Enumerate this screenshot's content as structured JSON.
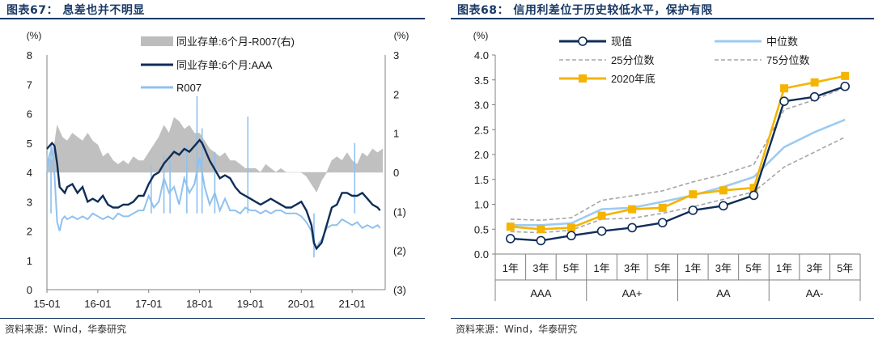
{
  "left": {
    "title": "图表67：  息差也并不明显",
    "source": "资料来源：Wind，华泰研究",
    "chart_data": {
      "type": "line",
      "left_unit": "(%)",
      "right_unit": "(%)",
      "x_ticks": [
        "15-01",
        "16-01",
        "17-01",
        "18-01",
        "19-01",
        "20-01",
        "21-01"
      ],
      "y_left_ticks": [
        "0",
        "1",
        "2",
        "3",
        "4",
        "5",
        "6",
        "7",
        "8"
      ],
      "y_right_ticks": [
        "(3)",
        "(2)",
        "(1)",
        "0",
        "1",
        "2",
        "3"
      ],
      "ylim_left": [
        0,
        8
      ],
      "ylim_right": [
        -3,
        3
      ],
      "colors": {
        "spread": "#bdbdbd",
        "aaa": "#0f2d57",
        "r007": "#8fc1ef"
      },
      "series": [
        {
          "name": "同业存单:6个月-R007(右)",
          "axis": "right",
          "style": "area",
          "x": [
            2015.0,
            2015.1,
            2015.2,
            2015.3,
            2015.4,
            2015.5,
            2015.6,
            2015.7,
            2015.8,
            2015.9,
            2016.0,
            2016.1,
            2016.2,
            2016.3,
            2016.4,
            2016.5,
            2016.6,
            2016.7,
            2016.8,
            2016.9,
            2017.0,
            2017.1,
            2017.2,
            2017.3,
            2017.4,
            2017.5,
            2017.6,
            2017.7,
            2017.8,
            2017.9,
            2018.0,
            2018.1,
            2018.2,
            2018.3,
            2018.4,
            2018.5,
            2018.6,
            2018.7,
            2018.8,
            2018.9,
            2019.0,
            2019.1,
            2019.2,
            2019.3,
            2019.4,
            2019.5,
            2019.6,
            2019.7,
            2019.8,
            2019.9,
            2020.0,
            2020.1,
            2020.2,
            2020.3,
            2020.4,
            2020.5,
            2020.6,
            2020.7,
            2020.8,
            2020.9,
            2021.0,
            2021.1,
            2021.2,
            2021.3,
            2021.4,
            2021.5,
            2021.6
          ],
          "values": [
            0.4,
            0.3,
            1.2,
            0.9,
            0.8,
            1.0,
            0.9,
            0.8,
            1.0,
            0.8,
            0.7,
            0.4,
            0.5,
            0.3,
            0.2,
            0.3,
            0.2,
            0.4,
            0.3,
            0.3,
            0.5,
            0.7,
            0.9,
            1.2,
            1.0,
            1.4,
            1.3,
            1.1,
            1.2,
            1.0,
            1.0,
            0.8,
            0.6,
            0.5,
            0.4,
            0.5,
            0.3,
            0.3,
            0.2,
            0.1,
            0.1,
            0.1,
            0.0,
            0.2,
            0.1,
            0.0,
            0.1,
            0.0,
            0.0,
            0.0,
            0.0,
            -0.1,
            -0.3,
            -0.5,
            -0.2,
            0.0,
            0.3,
            0.4,
            0.3,
            0.5,
            0.3,
            0.2,
            0.5,
            0.4,
            0.6,
            0.5,
            0.6
          ]
        },
        {
          "name": "同业存单:6个月:AAA",
          "axis": "left",
          "style": "line",
          "x": [
            2015.0,
            2015.05,
            2015.1,
            2015.15,
            2015.2,
            2015.25,
            2015.3,
            2015.35,
            2015.4,
            2015.5,
            2015.6,
            2015.7,
            2015.8,
            2015.9,
            2016.0,
            2016.1,
            2016.2,
            2016.3,
            2016.4,
            2016.5,
            2016.6,
            2016.7,
            2016.8,
            2016.9,
            2017.0,
            2017.1,
            2017.2,
            2017.3,
            2017.4,
            2017.5,
            2017.6,
            2017.7,
            2017.8,
            2017.9,
            2018.0,
            2018.05,
            2018.1,
            2018.15,
            2018.2,
            2018.3,
            2018.4,
            2018.5,
            2018.6,
            2018.7,
            2018.8,
            2018.9,
            2019.0,
            2019.1,
            2019.2,
            2019.3,
            2019.4,
            2019.5,
            2019.6,
            2019.7,
            2019.8,
            2019.9,
            2020.0,
            2020.1,
            2020.2,
            2020.25,
            2020.3,
            2020.35,
            2020.4,
            2020.5,
            2020.6,
            2020.7,
            2020.8,
            2020.9,
            2021.0,
            2021.1,
            2021.2,
            2021.3,
            2021.4,
            2021.5,
            2021.55
          ],
          "values": [
            4.8,
            4.9,
            5.0,
            4.9,
            4.3,
            3.5,
            3.4,
            3.3,
            3.5,
            3.6,
            3.3,
            3.5,
            3.0,
            3.1,
            3.0,
            3.2,
            2.9,
            2.8,
            2.8,
            2.9,
            2.9,
            3.0,
            3.2,
            3.2,
            3.6,
            3.9,
            4.0,
            4.3,
            4.5,
            4.7,
            4.6,
            4.8,
            4.7,
            4.9,
            5.1,
            5.0,
            4.8,
            4.6,
            4.4,
            4.1,
            3.8,
            3.9,
            3.8,
            3.5,
            3.3,
            3.2,
            3.1,
            3.0,
            2.9,
            3.0,
            3.1,
            3.0,
            2.9,
            2.8,
            2.8,
            2.9,
            3.0,
            2.7,
            2.2,
            1.6,
            1.4,
            1.5,
            1.6,
            2.2,
            2.8,
            2.9,
            3.3,
            3.3,
            3.2,
            3.2,
            3.3,
            3.1,
            2.9,
            2.8,
            2.7
          ]
        },
        {
          "name": "R007",
          "axis": "left",
          "style": "line",
          "x": [
            2015.0,
            2015.05,
            2015.1,
            2015.15,
            2015.2,
            2015.25,
            2015.3,
            2015.35,
            2015.4,
            2015.5,
            2015.6,
            2015.7,
            2015.8,
            2015.9,
            2016.0,
            2016.1,
            2016.2,
            2016.3,
            2016.4,
            2016.5,
            2016.6,
            2016.7,
            2016.8,
            2016.9,
            2017.0,
            2017.1,
            2017.2,
            2017.3,
            2017.4,
            2017.5,
            2017.6,
            2017.7,
            2017.8,
            2017.9,
            2018.0,
            2018.1,
            2018.2,
            2018.3,
            2018.4,
            2018.5,
            2018.6,
            2018.7,
            2018.8,
            2018.9,
            2019.0,
            2019.1,
            2019.2,
            2019.3,
            2019.4,
            2019.5,
            2019.6,
            2019.7,
            2019.8,
            2019.9,
            2020.0,
            2020.1,
            2020.2,
            2020.25,
            2020.3,
            2020.35,
            2020.4,
            2020.5,
            2020.6,
            2020.7,
            2020.8,
            2020.9,
            2021.0,
            2021.1,
            2021.2,
            2021.3,
            2021.4,
            2021.5,
            2021.55
          ],
          "values": [
            4.0,
            4.6,
            4.8,
            3.9,
            2.3,
            2.0,
            2.4,
            2.5,
            2.4,
            2.5,
            2.4,
            2.5,
            2.4,
            2.6,
            2.5,
            2.4,
            2.5,
            2.4,
            2.6,
            2.5,
            2.5,
            2.6,
            2.7,
            2.7,
            3.2,
            2.8,
            3.0,
            3.8,
            3.3,
            3.5,
            2.9,
            3.8,
            3.3,
            3.6,
            4.5,
            3.5,
            2.9,
            3.3,
            2.7,
            3.1,
            2.7,
            2.7,
            2.6,
            2.8,
            2.7,
            2.7,
            2.6,
            2.7,
            2.6,
            2.7,
            2.7,
            2.6,
            2.6,
            2.6,
            2.5,
            2.3,
            2.0,
            1.5,
            1.4,
            1.6,
            1.7,
            2.1,
            2.2,
            2.2,
            2.4,
            2.3,
            2.2,
            2.3,
            2.1,
            2.2,
            2.1,
            2.2,
            2.1
          ]
        }
      ],
      "spikes": [
        {
          "x": 2015.08,
          "value": 4.95
        },
        {
          "x": 2017.05,
          "value": 4.2
        },
        {
          "x": 2017.3,
          "value": 4.6
        },
        {
          "x": 2017.42,
          "value": 4.4
        },
        {
          "x": 2017.75,
          "value": 4.9
        },
        {
          "x": 2017.95,
          "value": 6.6
        },
        {
          "x": 2018.05,
          "value": 5.5
        },
        {
          "x": 2018.3,
          "value": 4.7
        },
        {
          "x": 2018.95,
          "value": 5.9
        },
        {
          "x": 2020.25,
          "value": 1.1
        },
        {
          "x": 2021.05,
          "value": 5.0
        }
      ]
    }
  },
  "right": {
    "title": "图表68：  信用利差位于历史较低水平，保护有限",
    "source": "资料来源：Wind，华泰研究",
    "chart_data": {
      "type": "line",
      "unit": "(%)",
      "ylim": [
        0,
        4
      ],
      "y_ticks": [
        "0.0",
        "0.5",
        "1.0",
        "1.5",
        "2.0",
        "2.5",
        "3.0",
        "3.5",
        "4.0"
      ],
      "categories": [
        "1年",
        "3年",
        "5年",
        "1年",
        "3年",
        "5年",
        "1年",
        "3年",
        "5年",
        "1年",
        "3年",
        "5年"
      ],
      "groups": [
        "AAA",
        "AA+",
        "AA",
        "AA-"
      ],
      "colors": {
        "current": "#0f2d57",
        "median": "#9ccbf2",
        "p25": "#a6a6a6",
        "p75": "#a6a6a6",
        "end2020": "#f5b400"
      },
      "series": [
        {
          "name": "现值",
          "values": [
            0.31,
            0.27,
            0.37,
            0.46,
            0.53,
            0.63,
            0.88,
            0.97,
            1.18,
            3.07,
            3.16,
            3.37
          ]
        },
        {
          "name": "中位数",
          "values": [
            0.58,
            0.58,
            0.62,
            0.9,
            0.93,
            1.05,
            1.18,
            1.35,
            1.55,
            2.15,
            2.45,
            2.7
          ]
        },
        {
          "name": "25分位数",
          "values": [
            0.45,
            0.43,
            0.48,
            0.7,
            0.72,
            0.82,
            0.95,
            1.1,
            1.25,
            1.75,
            2.05,
            2.35
          ]
        },
        {
          "name": "75分位数",
          "values": [
            0.7,
            0.68,
            0.73,
            1.08,
            1.17,
            1.27,
            1.45,
            1.6,
            1.8,
            2.9,
            3.1,
            3.35
          ]
        },
        {
          "name": "2020年底",
          "values": [
            0.55,
            0.5,
            0.53,
            0.77,
            0.9,
            0.93,
            1.2,
            1.28,
            1.33,
            3.33,
            3.45,
            3.58
          ]
        }
      ]
    }
  }
}
